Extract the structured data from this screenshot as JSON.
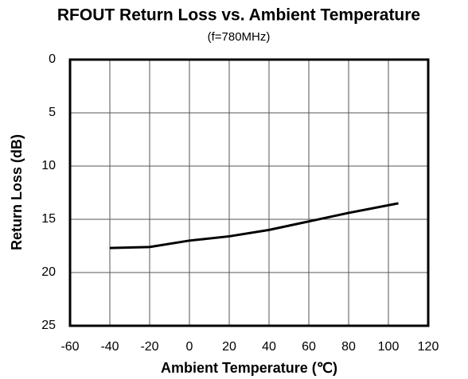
{
  "chart_data": {
    "type": "line",
    "title": "RFOUT Return Loss vs. Ambient Temperature",
    "subtitle": "(f=780MHz)",
    "x_label": "Ambient Temperature (℃)",
    "y_label": "Return Loss (dB)",
    "x": [
      -40,
      -20,
      0,
      20,
      40,
      60,
      80,
      105
    ],
    "series": [
      {
        "name": "Return Loss",
        "color": "#000000",
        "values": [
          17.7,
          17.6,
          17.0,
          16.6,
          16.0,
          15.2,
          14.4,
          13.5
        ]
      }
    ],
    "xlim": [
      -60,
      120
    ],
    "xticks": [
      -60,
      -40,
      -20,
      0,
      20,
      40,
      60,
      80,
      100,
      120
    ],
    "ylim": [
      0,
      25
    ],
    "yticks": [
      0,
      5,
      10,
      15,
      20,
      25
    ],
    "y_inverted": true,
    "grid": true
  }
}
